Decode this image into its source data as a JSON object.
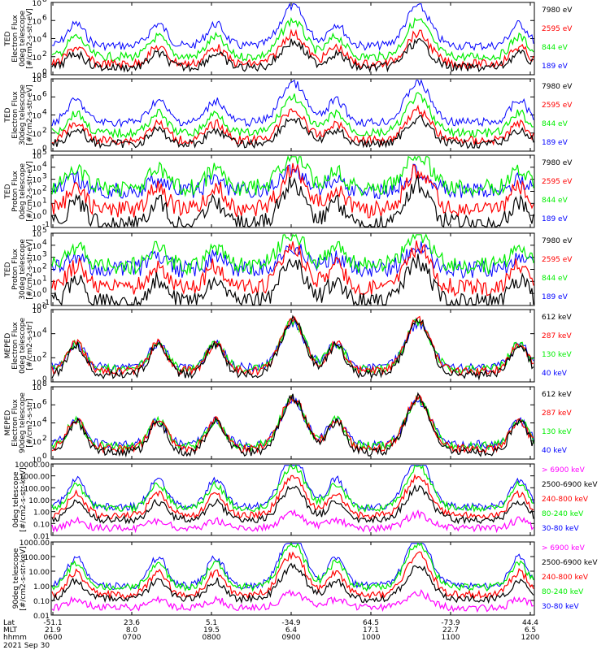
{
  "colors": {
    "blue": "#0000ff",
    "red": "#ff0000",
    "green": "#00ee00",
    "black": "#000000",
    "magenta": "#ff00ff"
  },
  "chart_data": [
    {
      "type": "line",
      "ylabel": [
        "TED",
        "Electron Flux",
        "0deg telescope",
        "[#/cm2-s-str-eV]"
      ],
      "yticks": [
        "10",
        "10",
        "10",
        "10",
        "10"
      ],
      "yexp": [
        "0",
        "2",
        "4",
        "6",
        "8"
      ],
      "ylim": [
        1,
        100000000
      ],
      "scale": "log",
      "series": [
        {
          "name": "7980 eV",
          "color": "#000000"
        },
        {
          "name": "2595 eV",
          "color": "#ff0000"
        },
        {
          "name": "844 eV",
          "color": "#00ee00"
        },
        {
          "name": "189 eV",
          "color": "#0000ff"
        }
      ]
    },
    {
      "type": "line",
      "ylabel": [
        "TED",
        "Electron Flux",
        "30deg telescope",
        "[#/cm2-s-str-eV]"
      ],
      "yticks": [
        "10",
        "10",
        "10",
        "10",
        "10"
      ],
      "yexp": [
        "0",
        "2",
        "4",
        "6",
        "8"
      ],
      "ylim": [
        1,
        100000000
      ],
      "scale": "log",
      "series": [
        {
          "name": "7980 eV",
          "color": "#000000"
        },
        {
          "name": "2595 eV",
          "color": "#ff0000"
        },
        {
          "name": "844 eV",
          "color": "#00ee00"
        },
        {
          "name": "189 eV",
          "color": "#0000ff"
        }
      ]
    },
    {
      "type": "line",
      "ylabel": [
        "TED",
        "Proton Flux",
        "0deg telescope",
        "[#/cm2-s-str-eV]"
      ],
      "yticks": [
        "10",
        "10",
        "10",
        "10",
        "10",
        "10",
        "10"
      ],
      "yexp": [
        "-1",
        "0",
        "1",
        "2",
        "3",
        "4",
        "5"
      ],
      "ylim": [
        0.1,
        100000
      ],
      "scale": "log",
      "series": [
        {
          "name": "7980 eV",
          "color": "#000000"
        },
        {
          "name": "2595 eV",
          "color": "#ff0000"
        },
        {
          "name": "844 eV",
          "color": "#00ee00"
        },
        {
          "name": "189 eV",
          "color": "#0000ff"
        }
      ]
    },
    {
      "type": "line",
      "ylabel": [
        "TED",
        "Proton Flux",
        "30deg telescope",
        "[#/cm2-s-str-eV]"
      ],
      "yticks": [
        "10",
        "10",
        "10",
        "10",
        "10",
        "10",
        "10"
      ],
      "yexp": [
        "-1",
        "0",
        "1",
        "2",
        "3",
        "4",
        "5"
      ],
      "ylim": [
        0.1,
        100000
      ],
      "scale": "log",
      "series": [
        {
          "name": "7980 eV",
          "color": "#000000"
        },
        {
          "name": "2595 eV",
          "color": "#ff0000"
        },
        {
          "name": "844 eV",
          "color": "#00ee00"
        },
        {
          "name": "189 eV",
          "color": "#0000ff"
        }
      ]
    },
    {
      "type": "line",
      "ylabel": [
        "MEPED",
        "Electron Flux",
        "0deg telescope",
        "[#/cm2-s-str]"
      ],
      "yticks": [
        "10",
        "10",
        "10",
        "10"
      ],
      "yexp": [
        "0",
        "2",
        "4",
        "6"
      ],
      "ylim": [
        1,
        1000000
      ],
      "scale": "log",
      "series": [
        {
          "name": "612 keV",
          "color": "#000000"
        },
        {
          "name": "287 keV",
          "color": "#ff0000"
        },
        {
          "name": "130 keV",
          "color": "#00ee00"
        },
        {
          "name": "40 keV",
          "color": "#0000ff"
        }
      ]
    },
    {
      "type": "line",
      "ylabel": [
        "MEPED",
        "Electron Flux",
        "90deg telescope",
        "[#/cm2-s-str]"
      ],
      "yticks": [
        "10",
        "10",
        "10",
        "10",
        "10"
      ],
      "yexp": [
        "0",
        "2",
        "4",
        "6",
        "8"
      ],
      "ylim": [
        1,
        100000000
      ],
      "scale": "log",
      "series": [
        {
          "name": "612 keV",
          "color": "#000000"
        },
        {
          "name": "287 keV",
          "color": "#ff0000"
        },
        {
          "name": "130 keV",
          "color": "#00ee00"
        },
        {
          "name": "40 keV",
          "color": "#0000ff"
        }
      ]
    },
    {
      "type": "line",
      "ylabel": [
        "0deg telescope",
        "[#/cm2-s-str-keV]"
      ],
      "yticks": [
        "10000.00",
        "1000.00",
        "100.00",
        "10.00",
        "1.00",
        "0.10",
        "0.01"
      ],
      "ylim": [
        0.01,
        10000
      ],
      "scale": "log",
      "series": [
        {
          "name": "> 6900 keV",
          "color": "#ff00ff"
        },
        {
          "name": "2500-6900 keV",
          "color": "#000000"
        },
        {
          "name": "240-800 keV",
          "color": "#ff0000"
        },
        {
          "name": "80-240 keV",
          "color": "#00ee00"
        },
        {
          "name": "30-80 keV",
          "color": "#0000ff"
        }
      ]
    },
    {
      "type": "line",
      "ylabel": [
        "90deg telescope",
        "[#/cm2-s-str-keV]"
      ],
      "yticks": [
        "1000.00",
        "100.00",
        "10.00",
        "1.00",
        "0.10",
        "0.01"
      ],
      "ylim": [
        0.01,
        1000
      ],
      "scale": "log",
      "series": [
        {
          "name": "> 6900 keV",
          "color": "#ff00ff"
        },
        {
          "name": "2500-6900 keV",
          "color": "#000000"
        },
        {
          "name": "240-800 keV",
          "color": "#ff0000"
        },
        {
          "name": "80-240 keV",
          "color": "#00ee00"
        },
        {
          "name": "30-80 keV",
          "color": "#0000ff"
        }
      ]
    }
  ],
  "xaxis": {
    "row_labels": [
      "Lat",
      "MLT",
      "hhmm",
      "2021 Sep 30"
    ],
    "lat": [
      "-51.1",
      "23.6",
      "5.1",
      "-34.9",
      "64.5",
      "-73.9",
      "44.4"
    ],
    "mlt": [
      "21.9",
      "8.0",
      "19.5",
      "6.4",
      "17.1",
      "22.7",
      "6.5"
    ],
    "hhmm": [
      "0600",
      "0700",
      "0800",
      "0900",
      "1000",
      "1100",
      "1200"
    ]
  }
}
